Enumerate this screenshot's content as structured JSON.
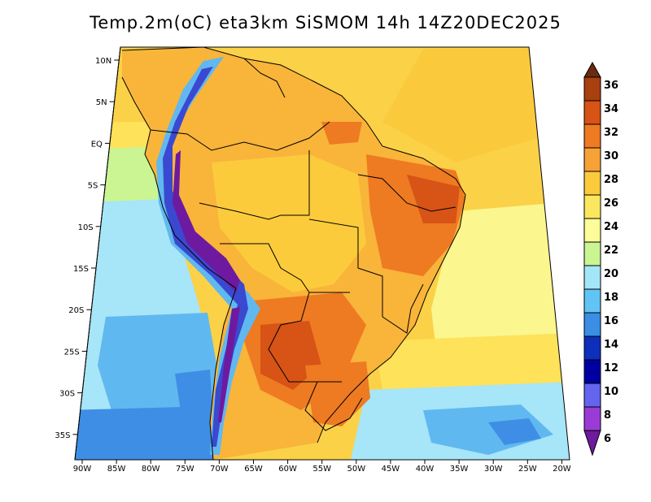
{
  "title": "Temp.2m(oC) eta3km SiSMOM 14h 14Z20DEC2025",
  "lat_labels": [
    "10N",
    "5N",
    "EQ",
    "5S",
    "10S",
    "15S",
    "20S",
    "25S",
    "30S",
    "35S"
  ],
  "lon_labels": [
    "90W",
    "85W",
    "80W",
    "75W",
    "70W",
    "65W",
    "60W",
    "55W",
    "50W",
    "45W",
    "40W",
    "35W",
    "30W",
    "25W",
    "20W"
  ],
  "colorbar": {
    "labels": [
      "36",
      "34",
      "32",
      "30",
      "28",
      "26",
      "24",
      "22",
      "20",
      "18",
      "16",
      "14",
      "12",
      "10",
      "8",
      "6"
    ],
    "colors": [
      "#6b2a12",
      "#a8400f",
      "#d75316",
      "#ee7a22",
      "#f6a236",
      "#fbcb3c",
      "#fbe75e",
      "#fcfc9a",
      "#caf592",
      "#a3e6f8",
      "#62c3f5",
      "#3a8fe5",
      "#0d2fbb",
      "#0000a0",
      "#6464f0",
      "#9b3bd6",
      "#6d1a9c"
    ],
    "unit": "oC"
  },
  "map_colors": {
    "ocean_warm": "#fbd148",
    "ocean_mild": "#fde25a",
    "ocean_cool": "#fbf68e",
    "ocean_cold": "#a7e5f8",
    "ocean_colder": "#60b8f0",
    "ocean_coldest": "#3e8ee6",
    "land_hot": "#f49d31",
    "land_very_hot": "#e46d1f",
    "land_extreme": "#c44a13",
    "andes": "#3a49d0",
    "andes_peaks": "#6e1aa0"
  }
}
